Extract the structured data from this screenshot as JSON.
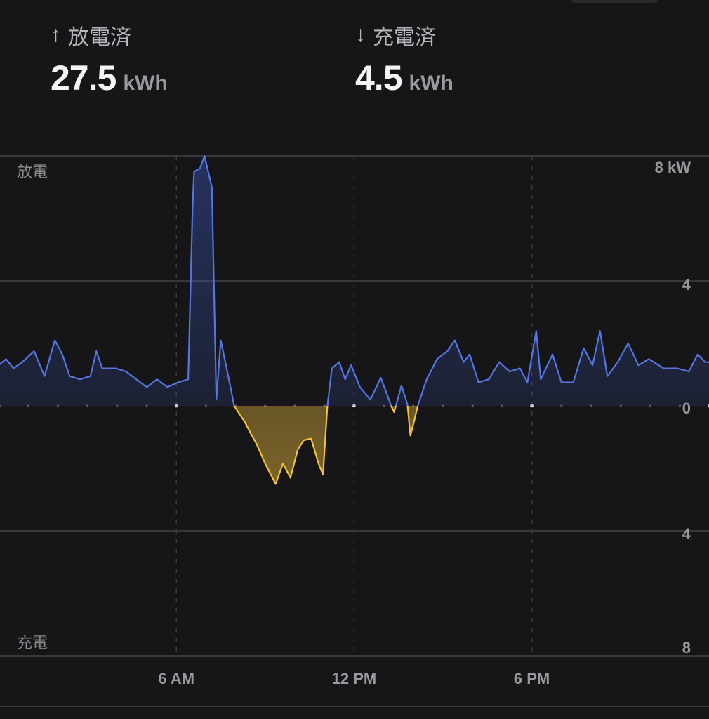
{
  "summary": {
    "discharged": {
      "icon": "arrow-up-icon",
      "label": "放電済",
      "value": "27.5",
      "unit": "kWh"
    },
    "charged": {
      "icon": "arrow-down-icon",
      "label": "充電済",
      "value": "4.5",
      "unit": "kWh"
    }
  },
  "chart_data": {
    "type": "area",
    "top_label": "放電",
    "bottom_label": "充電",
    "y_unit": "kW",
    "y_ticks": [
      {
        "value": 8,
        "label": "8 kW"
      },
      {
        "value": 4,
        "label": "4"
      },
      {
        "value": 0,
        "label": "0"
      },
      {
        "value": -4,
        "label": "4"
      },
      {
        "value": -8,
        "label": "8"
      }
    ],
    "ylim": [
      -8,
      8
    ],
    "x_ticks": [
      {
        "value": "06:00",
        "label": "6 AM"
      },
      {
        "value": "12:00",
        "label": "12 PM"
      },
      {
        "value": "18:00",
        "label": "6 PM"
      }
    ],
    "xlim": [
      "00:00",
      "24:00"
    ],
    "grid": true,
    "colors": {
      "discharge": "#5476e0",
      "charge": "#f4c23e",
      "background": "#161618",
      "grid": "#38383b"
    },
    "series": [
      {
        "points": [
          [
            "00:00",
            1.3
          ],
          [
            "00:15",
            1.5
          ],
          [
            "00:30",
            1.2
          ],
          [
            "00:48",
            1.4
          ],
          [
            "01:12",
            1.75
          ],
          [
            "01:33",
            0.95
          ],
          [
            "01:54",
            2.1
          ],
          [
            "02:09",
            1.65
          ],
          [
            "02:24",
            0.95
          ],
          [
            "02:45",
            0.85
          ],
          [
            "03:06",
            0.95
          ],
          [
            "03:18",
            1.75
          ],
          [
            "03:30",
            1.2
          ],
          [
            "03:57",
            1.2
          ],
          [
            "04:18",
            1.1
          ],
          [
            "04:39",
            0.85
          ],
          [
            "05:00",
            0.6
          ],
          [
            "05:21",
            0.85
          ],
          [
            "05:42",
            0.6
          ],
          [
            "06:03",
            0.75
          ],
          [
            "06:24",
            0.85
          ],
          [
            "06:33",
            6.4
          ],
          [
            "06:36",
            7.5
          ],
          [
            "06:48",
            7.6
          ],
          [
            "06:57",
            8.0
          ],
          [
            "07:12",
            7.0
          ],
          [
            "07:21",
            0.2
          ],
          [
            "07:30",
            2.1
          ],
          [
            "07:51",
            0.5
          ],
          [
            "07:57",
            0
          ],
          [
            "08:18",
            -0.5
          ],
          [
            "08:33",
            -0.95
          ],
          [
            "08:42",
            -1.2
          ],
          [
            "09:00",
            -1.85
          ],
          [
            "09:21",
            -2.5
          ],
          [
            "09:36",
            -1.85
          ],
          [
            "09:51",
            -2.3
          ],
          [
            "10:06",
            -1.4
          ],
          [
            "10:18",
            -1.1
          ],
          [
            "10:33",
            -1.05
          ],
          [
            "10:48",
            -1.85
          ],
          [
            "10:57",
            -2.2
          ],
          [
            "11:06",
            0
          ],
          [
            "11:15",
            1.2
          ],
          [
            "11:30",
            1.4
          ],
          [
            "11:42",
            0.85
          ],
          [
            "11:54",
            1.3
          ],
          [
            "12:12",
            0.6
          ],
          [
            "12:33",
            0.2
          ],
          [
            "12:54",
            0.9
          ],
          [
            "13:06",
            0.4
          ],
          [
            "13:15",
            0
          ],
          [
            "13:21",
            -0.2
          ],
          [
            "13:36",
            0.65
          ],
          [
            "13:48",
            0.05
          ],
          [
            "13:54",
            -0.95
          ],
          [
            "14:03",
            -0.4
          ],
          [
            "14:09",
            0
          ],
          [
            "14:27",
            0.85
          ],
          [
            "14:48",
            1.5
          ],
          [
            "15:09",
            1.75
          ],
          [
            "15:24",
            2.1
          ],
          [
            "15:42",
            1.4
          ],
          [
            "15:54",
            1.65
          ],
          [
            "16:12",
            0.75
          ],
          [
            "16:33",
            0.85
          ],
          [
            "16:54",
            1.4
          ],
          [
            "17:15",
            1.1
          ],
          [
            "17:36",
            1.2
          ],
          [
            "17:51",
            0.75
          ],
          [
            "18:09",
            2.4
          ],
          [
            "18:18",
            0.85
          ],
          [
            "18:42",
            1.65
          ],
          [
            "19:00",
            0.75
          ],
          [
            "19:24",
            0.75
          ],
          [
            "19:45",
            1.85
          ],
          [
            "20:03",
            1.3
          ],
          [
            "20:18",
            2.4
          ],
          [
            "20:33",
            0.95
          ],
          [
            "20:54",
            1.4
          ],
          [
            "21:15",
            2.0
          ],
          [
            "21:36",
            1.3
          ],
          [
            "21:57",
            1.5
          ],
          [
            "22:27",
            1.2
          ],
          [
            "22:54",
            1.2
          ],
          [
            "23:18",
            1.1
          ],
          [
            "23:36",
            1.65
          ],
          [
            "23:51",
            1.4
          ]
        ]
      }
    ]
  }
}
